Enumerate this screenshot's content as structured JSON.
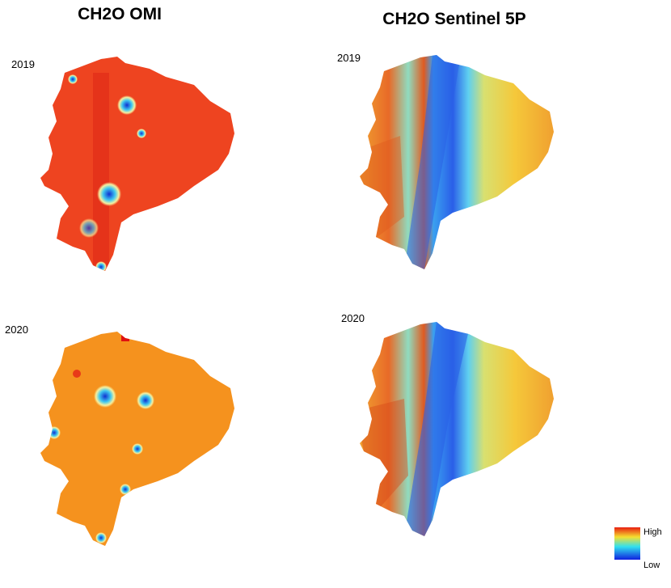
{
  "columns": [
    {
      "title": "CH2O OMI",
      "panels": [
        {
          "year": "2019"
        },
        {
          "year": "2020"
        }
      ]
    },
    {
      "title": "CH2O Sentinel 5P",
      "panels": [
        {
          "year": "2019"
        },
        {
          "year": "2020"
        }
      ]
    }
  ],
  "legend": {
    "high": "High",
    "low": "Low"
  }
}
